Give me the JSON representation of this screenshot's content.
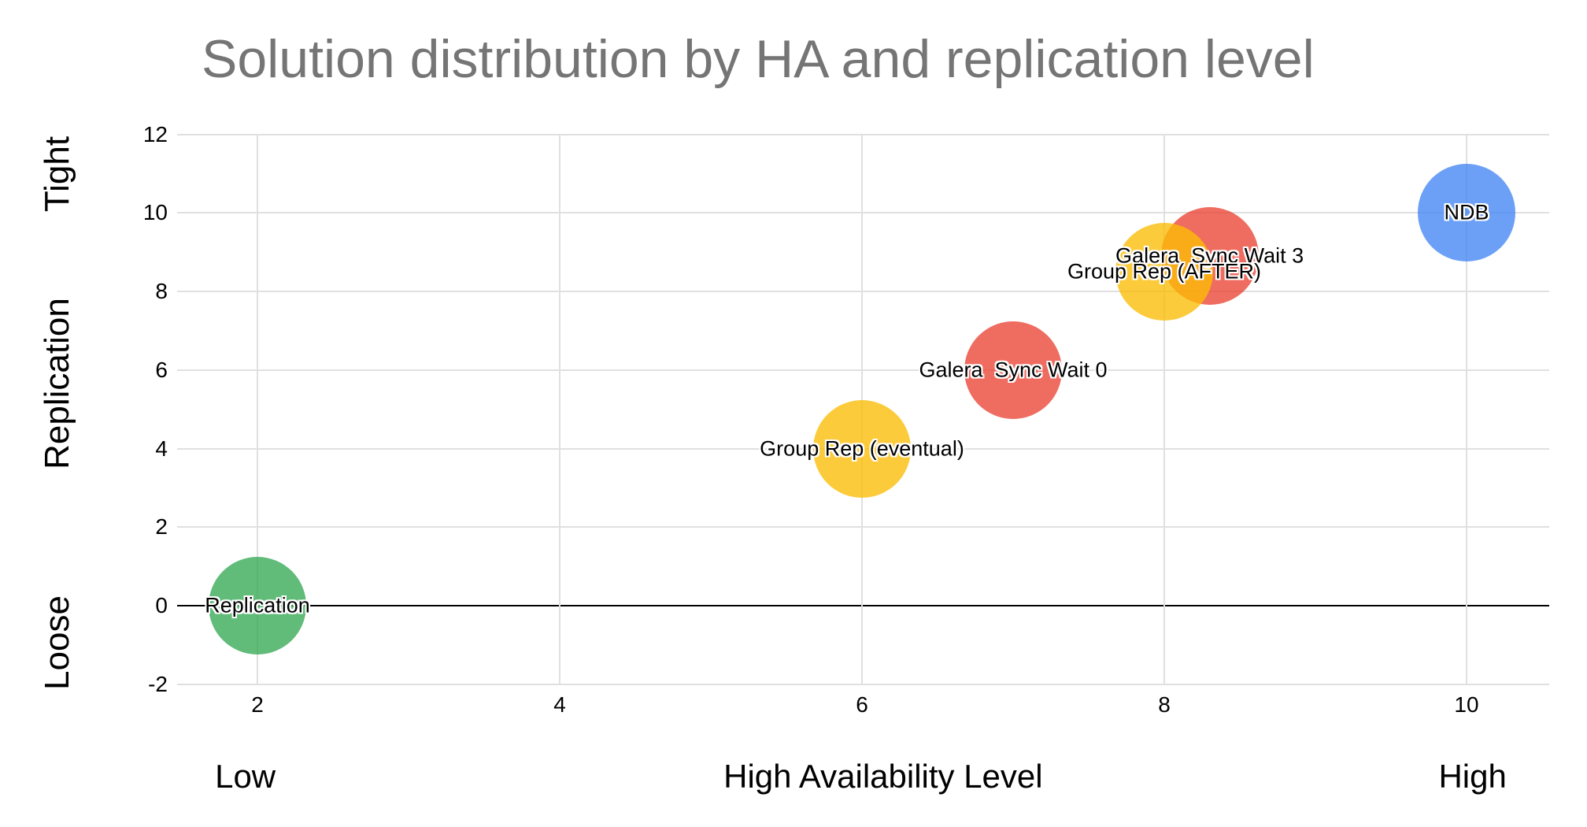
{
  "title": "Solution distribution by HA and replication level",
  "colors": {
    "title": "#757575",
    "gridline": "#e0e0e0",
    "zero_line": "#000000",
    "text": "#000000",
    "background": "#ffffff"
  },
  "chart_data": {
    "type": "scatter",
    "subtype": "bubble",
    "title": "Solution distribution by HA and replication level",
    "xlabel": "High Availability Level",
    "x_axis_end_labels": {
      "left": "Low",
      "right": "High"
    },
    "x_ticks": [
      2,
      4,
      6,
      8,
      10
    ],
    "y_ticks": [
      12,
      10,
      8,
      6,
      4,
      2,
      0,
      -2
    ],
    "xlim": [
      1.47,
      10.55
    ],
    "ylim": [
      -2,
      12
    ],
    "grid": true,
    "zero_line_y": 0,
    "legend_position": "none",
    "bubble_opacity": 0.78,
    "bubble_radius_px": 62,
    "y_zone_labels": [
      {
        "label": "Tight",
        "y": 11.0
      },
      {
        "label": "Replication",
        "y": 5.65
      },
      {
        "label": "Loose",
        "y": -0.95
      }
    ],
    "bottom_labels": [
      {
        "label": "Low",
        "x": 1.92
      },
      {
        "label": "High Availability Level",
        "x": 6.14
      },
      {
        "label": "High",
        "x": 10.04
      }
    ],
    "points": [
      {
        "label": "Replication",
        "x": 2,
        "y": 0,
        "color": "#34A853",
        "color_name": "green"
      },
      {
        "label": "Group Rep (eventual)",
        "x": 6,
        "y": 4,
        "color": "#FBBC04",
        "color_name": "yellow"
      },
      {
        "label": "Galera  Sync Wait 0",
        "x": 7,
        "y": 6,
        "color": "#EA4335",
        "color_name": "red"
      },
      {
        "label": "Galera  Sync Wait 3",
        "x": 8.3,
        "y": 8.9,
        "color": "#EA4335",
        "color_name": "red"
      },
      {
        "label": "Group Rep (AFTER)",
        "x": 8,
        "y": 8.5,
        "color": "#FBBC04",
        "color_name": "yellow"
      },
      {
        "label": "NDB",
        "x": 10,
        "y": 10,
        "color": "#4285F4",
        "color_name": "blue"
      }
    ]
  }
}
